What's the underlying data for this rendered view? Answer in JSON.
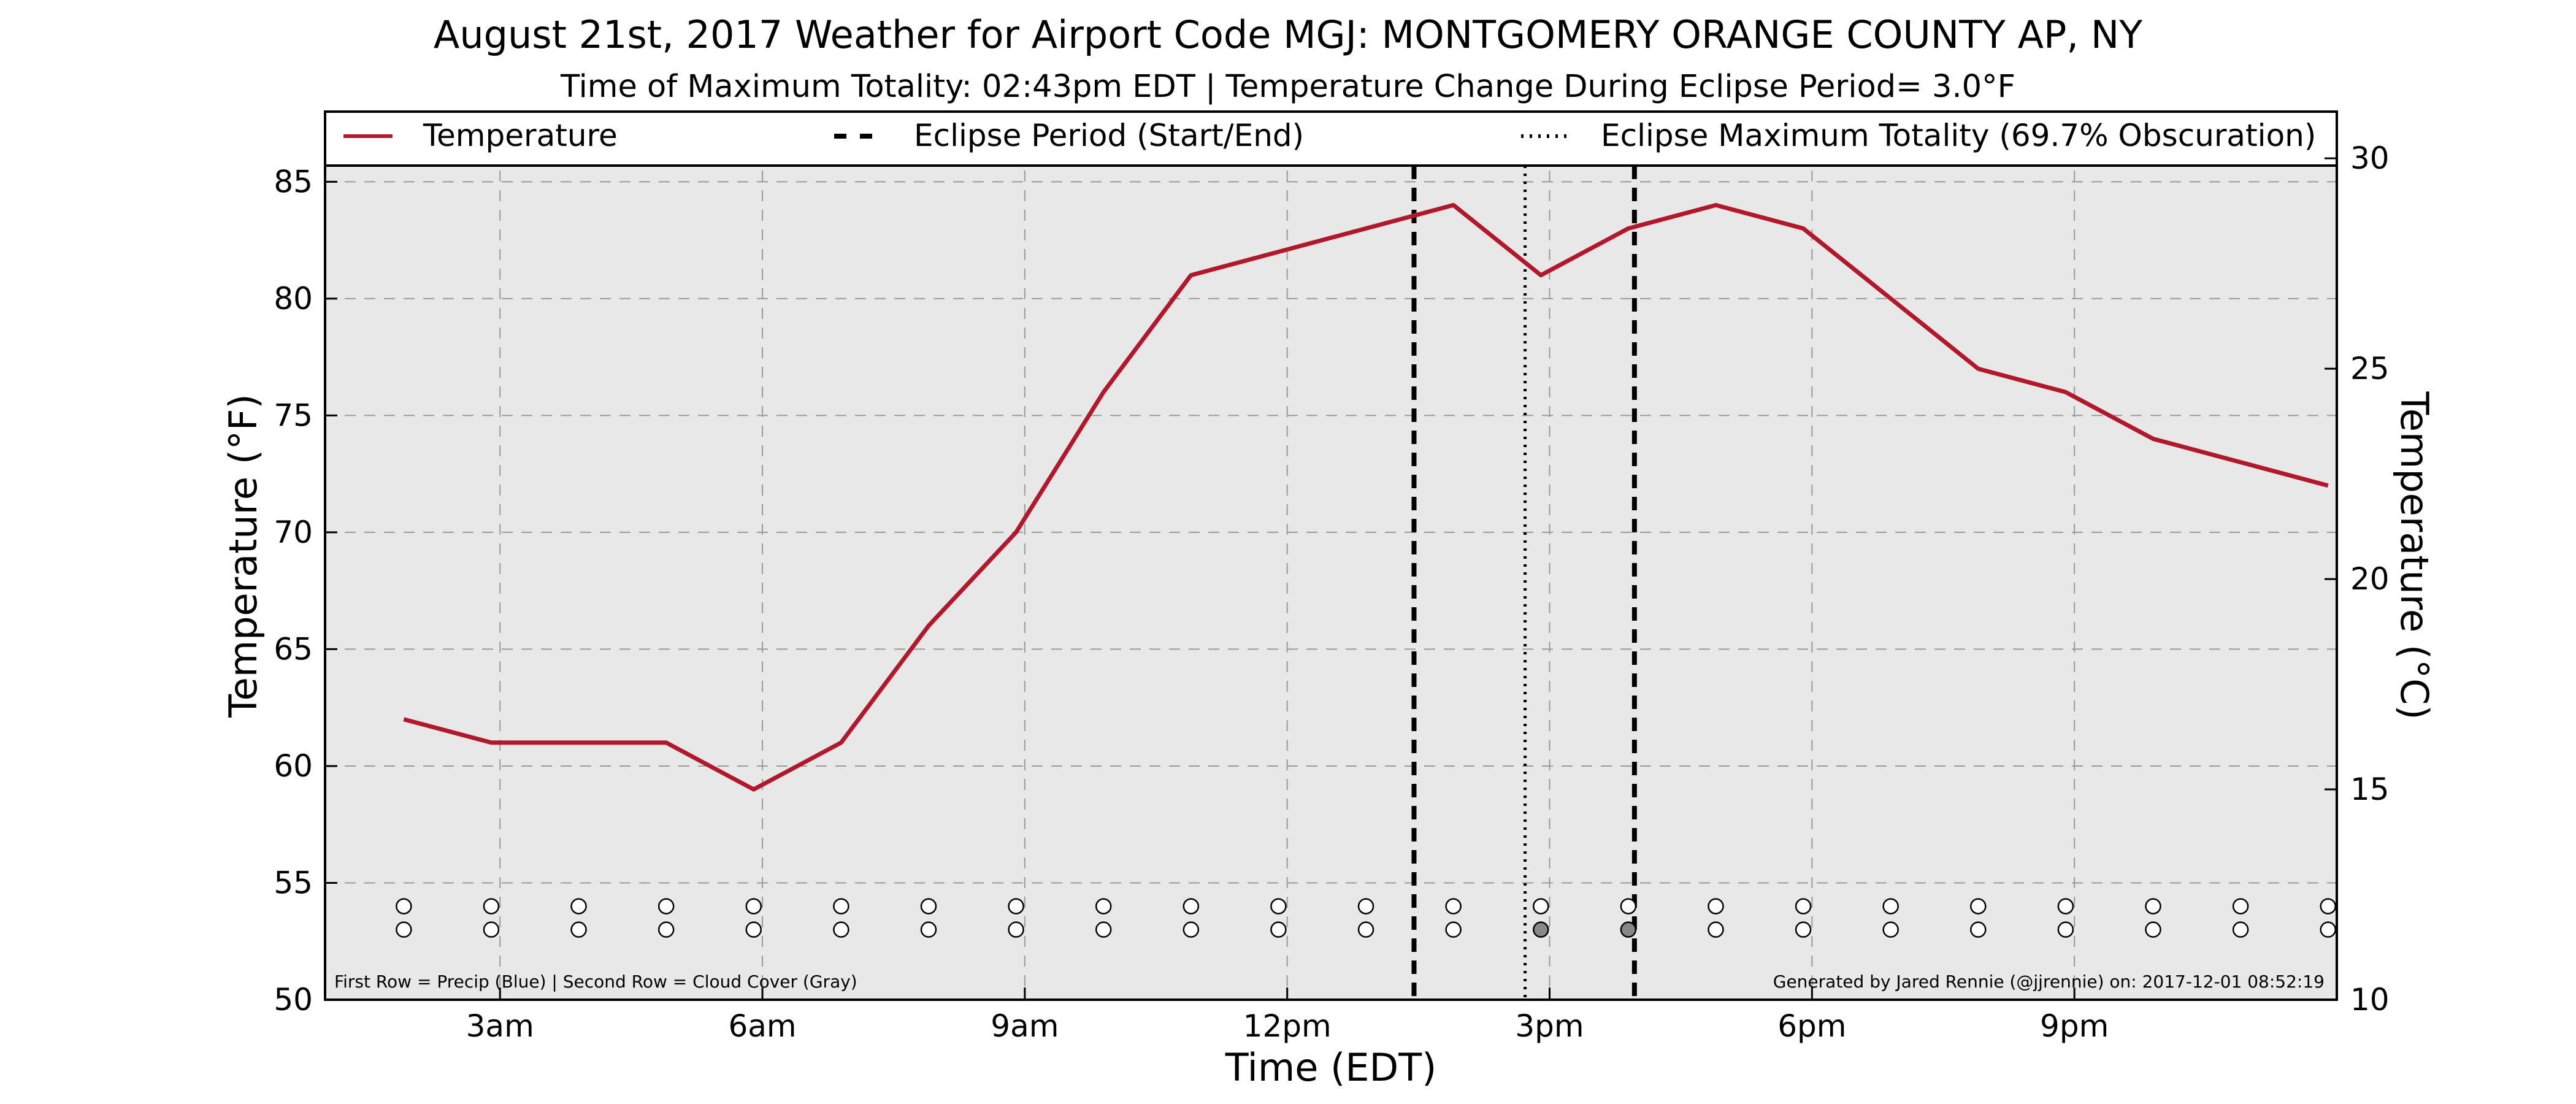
{
  "chart_data": {
    "type": "line",
    "title": "August 21st, 2017 Weather for Airport Code MGJ: MONTGOMERY ORANGE COUNTY AP, NY",
    "subtitle": "Time of Maximum Totality: 02:43pm EDT | Temperature Change During Eclipse Period= 3.0°F",
    "xlabel": "Time (EDT)",
    "ylabel": "Temperature (°F)",
    "ylabel_right": "Temperature (°C)",
    "xlim": [
      1,
      24
    ],
    "ylim": [
      50,
      88
    ],
    "ylim_right": [
      10,
      31.11
    ],
    "x_ticks": [
      {
        "x": 3,
        "label": "3am"
      },
      {
        "x": 6,
        "label": "6am"
      },
      {
        "x": 9,
        "label": "9am"
      },
      {
        "x": 12,
        "label": "12pm"
      },
      {
        "x": 15,
        "label": "3pm"
      },
      {
        "x": 18,
        "label": "6pm"
      },
      {
        "x": 21,
        "label": "9pm"
      }
    ],
    "y_ticks": [
      50,
      55,
      60,
      65,
      70,
      75,
      80,
      85
    ],
    "y_ticks_right": [
      10,
      15,
      20,
      25,
      30
    ],
    "grid": true,
    "series": [
      {
        "name": "Temperature",
        "color": "#b2182b",
        "x": [
          1.9,
          2.9,
          3.9,
          4.9,
          5.9,
          6.9,
          7.9,
          8.9,
          9.9,
          10.9,
          11.9,
          12.9,
          13.9,
          14.9,
          15.9,
          16.9,
          17.9,
          18.9,
          19.9,
          20.9,
          21.9,
          22.9,
          23.9
        ],
        "y": [
          62,
          61,
          61,
          61,
          59,
          61,
          66,
          70,
          76,
          81,
          82,
          83,
          84,
          81,
          83,
          84,
          83,
          80,
          77,
          76,
          74,
          73,
          72
        ]
      }
    ],
    "eclipse_start": 13.45,
    "eclipse_end": 15.97,
    "eclipse_max": 14.72,
    "legend": {
      "placement": "top",
      "entries": [
        {
          "label": "Temperature",
          "style": "solid",
          "color": "#b2182b"
        },
        {
          "label": "Eclipse Period (Start/End)",
          "style": "dashed",
          "color": "#000000"
        },
        {
          "label": "Eclipse Maximum Totality (69.7% Obscuration)",
          "style": "dotted",
          "color": "#000000"
        }
      ]
    },
    "marker_rows": {
      "x": [
        1.9,
        2.9,
        3.9,
        4.9,
        5.9,
        6.9,
        7.9,
        8.9,
        9.9,
        10.9,
        11.9,
        12.9,
        13.9,
        14.9,
        15.9,
        16.9,
        17.9,
        18.9,
        19.9,
        20.9,
        21.9,
        22.9,
        23.9
      ],
      "precip_y": 54,
      "cloud_y": 53,
      "precip_filled": [],
      "cloud_filled": [
        14.9,
        15.9
      ],
      "precip_fill_color": "#4393c3",
      "cloud_fill_color": "#888888"
    },
    "annotations": {
      "left": "First Row = Precip (Blue) | Second Row = Cloud Cover (Gray)",
      "right": "Generated by Jared Rennie (@jjrennie) on: 2017-12-01 08:52:19"
    }
  }
}
